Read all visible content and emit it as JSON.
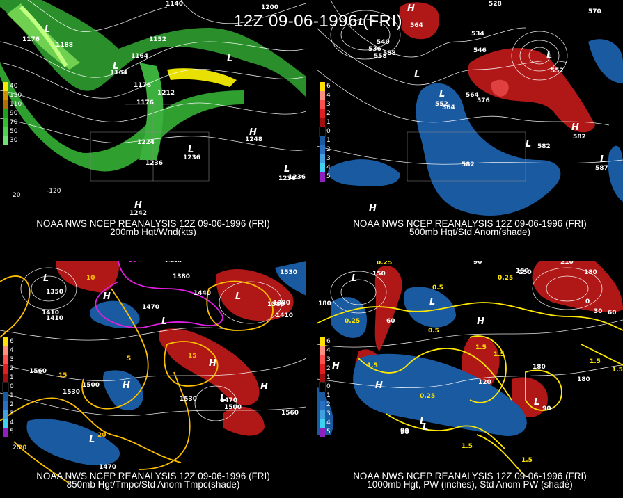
{
  "header": {
    "title": "12Z 09-06-1996 (FRI)"
  },
  "panels": [
    {
      "id": "p1",
      "caption1": "NOAA NWS NCEP REANALYSIS 12Z 09-06-1996 (FRI)",
      "caption2": "200mb Hgt/Wnd(kts)",
      "legend": [
        "40",
        "130",
        "110",
        "90",
        "70",
        "50",
        "30"
      ],
      "legend_colors": [
        "#ffe800",
        "#d09000",
        "#b07000",
        "#20a020",
        "#30c030",
        "#50d050",
        "#70e070"
      ],
      "labels": [
        "1140",
        "1200",
        "1176",
        "1188",
        "1152",
        "1164",
        "1164",
        "1176",
        "1212",
        "1176",
        "1224",
        "1236",
        "1248",
        "1236",
        "1236",
        "1236",
        "1242"
      ],
      "axis": [
        "-120",
        "20"
      ],
      "highs_lows": [
        "L",
        "L",
        "L",
        "H",
        "L",
        "L",
        "H"
      ]
    },
    {
      "id": "p2",
      "caption1": "NOAA NWS NCEP REANALYSIS 12Z 09-06-1996 (FRI)",
      "caption2": "500mb Hgt/Std Anom(shade)",
      "legend": [
        "6",
        "4",
        "3",
        "2",
        "1",
        "0",
        "1",
        "2",
        "3",
        "4",
        "5"
      ],
      "legend_colors": [
        "#ffe000",
        "#ff9080",
        "#ff5050",
        "#e02020",
        "#a01010",
        "#000000",
        "#1a5aa0",
        "#2a70c0",
        "#40a0e0",
        "#40d0f0",
        "#9020c0"
      ],
      "labels": [
        "528",
        "570",
        "564",
        "534",
        "540",
        "546",
        "536",
        "558",
        "558",
        "552",
        "564",
        "576",
        "552",
        "582",
        "582",
        "582",
        "587",
        "564"
      ],
      "highs_lows": [
        "H",
        "L",
        "L",
        "L",
        "L",
        "H",
        "L",
        "L",
        "H"
      ]
    },
    {
      "id": "p3",
      "caption1": "NOAA NWS NCEP REANALYSIS 12Z 09-06-1996 (FRI)",
      "caption2": "850mb Hgt/Tmpc/Std Anom Tmpc(shade)",
      "legend": [
        "6",
        "4",
        "3",
        "2",
        "1",
        "0",
        "1",
        "2",
        "3",
        "4",
        "5"
      ],
      "legend_colors": [
        "#ffe000",
        "#ff9080",
        "#ff5050",
        "#e02020",
        "#a01010",
        "#000000",
        "#1a5aa0",
        "#2a70c0",
        "#40a0e0",
        "#40d0f0",
        "#9020c0"
      ],
      "labels": [
        "10",
        "1350",
        "1380",
        "1440",
        "1530",
        "1470",
        "1410",
        "1410",
        "1380",
        "1350",
        "1560",
        "1500",
        "1530",
        "1530",
        "1560",
        "1470",
        "1500",
        "1380",
        "1470",
        "1410",
        "20",
        "15",
        "5",
        "10",
        "15",
        "20"
      ],
      "axis": [
        "20"
      ],
      "highs_lows": [
        "L",
        "H",
        "L",
        "L",
        "H",
        "H",
        "H",
        "L",
        "L"
      ]
    },
    {
      "id": "p4",
      "caption1": "NOAA NWS NCEP REANALYSIS 12Z 09-06-1996 (FRI)",
      "caption2": "1000mb Hgt, PW (inches), Std Anom PW (shade)",
      "legend": [
        "6",
        "4",
        "3",
        "2",
        "1",
        "0",
        "1",
        "2",
        "3",
        "4",
        "5"
      ],
      "legend_colors": [
        "#ffe000",
        "#ff9080",
        "#ff5050",
        "#e02020",
        "#a01010",
        "#000000",
        "#1a5aa0",
        "#2a70c0",
        "#40a0e0",
        "#40d0f0",
        "#9020c0"
      ],
      "labels": [
        "0.25",
        "90",
        "210",
        "180",
        "150",
        "150",
        "180",
        "0.5",
        "0.25",
        "0.5",
        "0.25",
        "1.5",
        "1.5",
        "1.5",
        "180",
        "180",
        "150",
        "90",
        "120",
        "90",
        "60",
        "30",
        "0",
        "60",
        "0.25",
        "1.5",
        "1.5",
        "90",
        "1.5",
        "1.5"
      ],
      "highs_lows": [
        "L",
        "H",
        "H",
        "L",
        "H",
        "L",
        "L",
        "L"
      ]
    }
  ]
}
